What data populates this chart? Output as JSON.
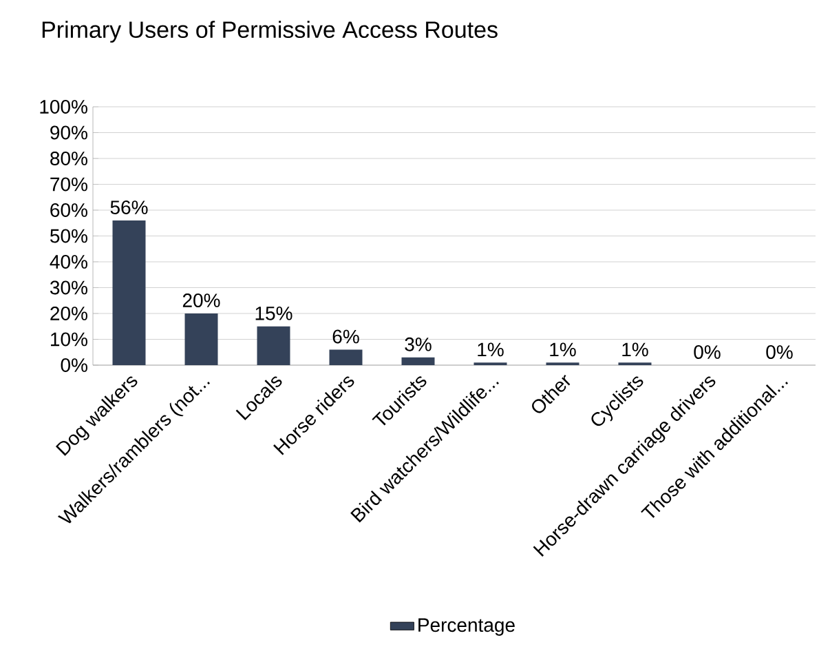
{
  "chart_data": {
    "type": "bar",
    "title": "Primary Users of Permissive Access Routes",
    "categories": [
      "Dog walkers",
      "Walkers/ramblers (not...",
      "Locals",
      "Horse riders",
      "Tourists",
      "Bird watchers/Wildlife...",
      "Other",
      "Cyclists",
      "Horse-drawn carriage drivers",
      "Those with additional..."
    ],
    "series": [
      {
        "name": "Percentage",
        "color": "#344259",
        "values": [
          56,
          20,
          15,
          6,
          3,
          1,
          1,
          1,
          0,
          0
        ],
        "value_labels": [
          "56%",
          "20%",
          "15%",
          "6%",
          "3%",
          "1%",
          "1%",
          "1%",
          "0%",
          "0%"
        ]
      }
    ],
    "ylim": [
      0,
      100
    ],
    "yticks": [
      {
        "value": 0,
        "label": "0%"
      },
      {
        "value": 10,
        "label": "10%"
      },
      {
        "value": 20,
        "label": "20%"
      },
      {
        "value": 30,
        "label": "30%"
      },
      {
        "value": 40,
        "label": "40%"
      },
      {
        "value": 50,
        "label": "50%"
      },
      {
        "value": 60,
        "label": "60%"
      },
      {
        "value": 70,
        "label": "70%"
      },
      {
        "value": 80,
        "label": "80%"
      },
      {
        "value": 90,
        "label": "90%"
      },
      {
        "value": 100,
        "label": "100%"
      }
    ],
    "grid": "y",
    "legend": "bottom"
  }
}
